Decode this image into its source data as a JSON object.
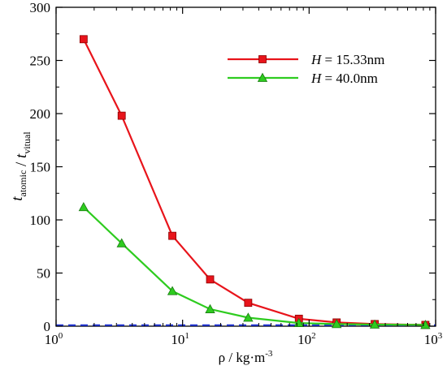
{
  "chart_data": {
    "type": "line",
    "x_scale": "log",
    "xlim": [
      1,
      1000
    ],
    "ylim": [
      0,
      300
    ],
    "grid": false,
    "legend_position": "top-right",
    "xlabel": {
      "main": "ρ / kg·m",
      "sup": "-3"
    },
    "ylabel": {
      "parts": [
        {
          "text": "t",
          "italic": true,
          "sub": "atomic"
        },
        {
          "text": " / ",
          "italic": false,
          "sub": ""
        },
        {
          "text": "t",
          "italic": true,
          "sub": "vitual"
        }
      ]
    },
    "x_ticks": [
      {
        "value": 1,
        "base": "10",
        "exp": "0"
      },
      {
        "value": 10,
        "base": "10",
        "exp": "1"
      },
      {
        "value": 100,
        "base": "10",
        "exp": "2"
      },
      {
        "value": 1000,
        "base": "10",
        "exp": "3"
      }
    ],
    "y_ticks": [
      0,
      50,
      100,
      150,
      200,
      250,
      300
    ],
    "series": [
      {
        "name": "H = 15.33nm",
        "name_italic": "H",
        "name_rest": " = 15.33nm",
        "color": "#e8141b",
        "marker": "square",
        "x": [
          1.65,
          3.3,
          8.3,
          16.5,
          33,
          83,
          165,
          330,
          830
        ],
        "y": [
          270,
          198,
          85,
          44,
          22,
          7,
          3.5,
          2,
          1.2
        ]
      },
      {
        "name": "H = 40.0nm",
        "name_italic": "H",
        "name_rest": " = 40.0nm",
        "color": "#2ecc1f",
        "marker": "triangle",
        "x": [
          1.65,
          3.3,
          8.3,
          16.5,
          33,
          83,
          165,
          330,
          830
        ],
        "y": [
          112,
          78,
          33,
          16,
          8,
          3,
          2,
          1.5,
          1.2
        ]
      }
    ],
    "reference_line": {
      "y": 1,
      "color": "#2034d8",
      "style": "dashed"
    }
  }
}
